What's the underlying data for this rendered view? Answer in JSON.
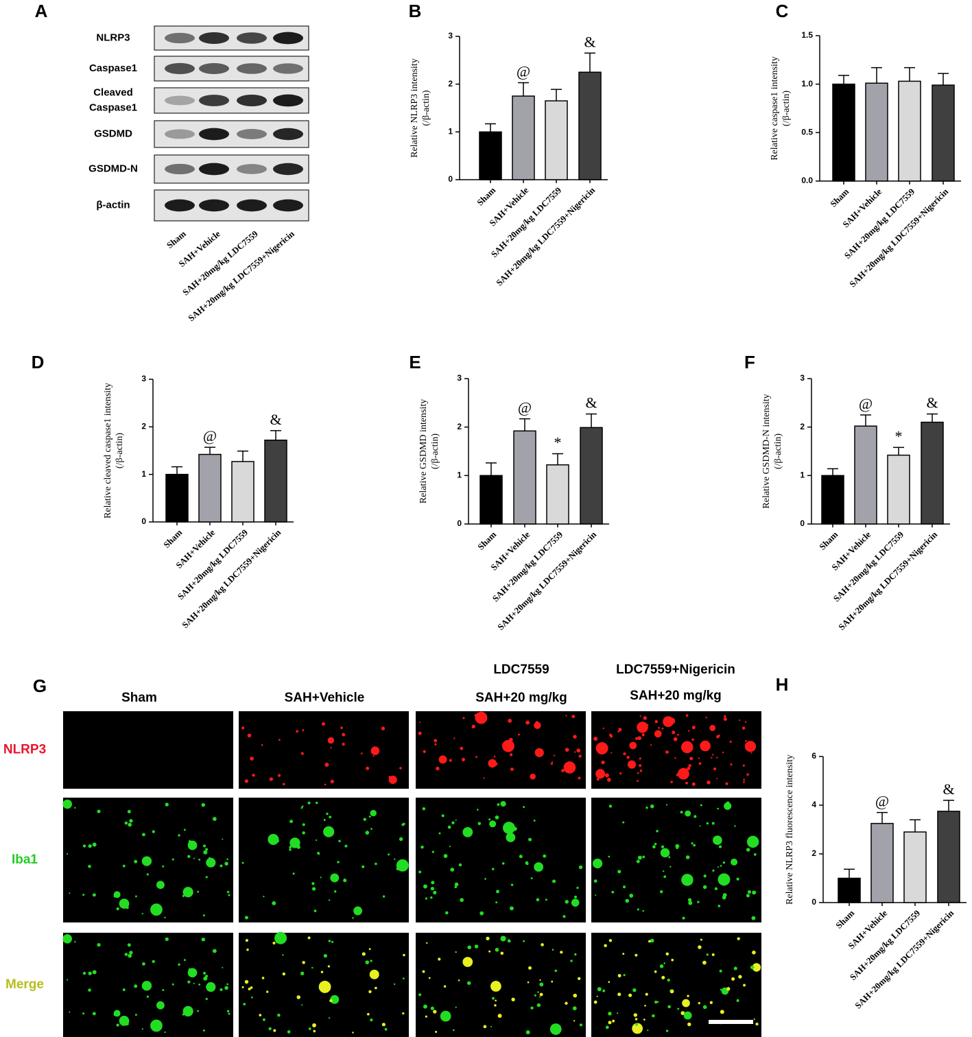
{
  "blot": {
    "label": "A",
    "rows": [
      [
        "NLRP3"
      ],
      [
        "Caspase1"
      ],
      [
        "Cleaved",
        "Caspase1"
      ],
      [
        "GSDMD"
      ],
      [
        "GSDMD-N"
      ],
      [
        "β-actin"
      ]
    ],
    "categories": [
      "Sham",
      "SAH+Vehicle",
      "SAH+20mg/kg LDC7559",
      "SAH+20mg/kg LDC7559+Nigericin"
    ]
  },
  "chart_data": [
    {
      "type": "bar",
      "label": "B",
      "ylabel": [
        "Relative NLRP3 intensity",
        "(/β-actin)"
      ],
      "categories": [
        "Sham",
        "SAH+Vehicle",
        "SAH+20mg/kg LDC7559",
        "SAH+20mg/kg LDC7559+Nigericin"
      ],
      "values": [
        1.0,
        1.75,
        1.65,
        2.25
      ],
      "errors": [
        0.17,
        0.28,
        0.24,
        0.4
      ],
      "annotations": [
        null,
        "@",
        null,
        "&"
      ],
      "colors": [
        "#000000",
        "#a2a2aa",
        "#d9d9d9",
        "#404040"
      ],
      "ylim": [
        0,
        3
      ],
      "yticks": [
        0,
        1,
        2,
        3
      ]
    },
    {
      "type": "bar",
      "label": "C",
      "ylabel": [
        "Relative caspase1 intensity",
        "(/β-actin)"
      ],
      "categories": [
        "Sham",
        "SAH+Vehicle",
        "SAH+20mg/kg LDC7559",
        "SAH+20mg/kg LDC7559+Nigericin"
      ],
      "values": [
        1.0,
        1.01,
        1.03,
        0.99
      ],
      "errors": [
        0.09,
        0.16,
        0.14,
        0.12
      ],
      "annotations": [
        null,
        null,
        null,
        null
      ],
      "colors": [
        "#000000",
        "#a2a2aa",
        "#d9d9d9",
        "#404040"
      ],
      "ylim": [
        0,
        1.5
      ],
      "yticks": [
        {
          "value": 0,
          "label": "0.0"
        },
        0.5,
        {
          "value": 1,
          "label": "1.0"
        },
        1.5
      ]
    },
    {
      "type": "bar",
      "label": "D",
      "ylabel": [
        "Relative cleaved caspase1 intensity",
        "(/β-actin)"
      ],
      "categories": [
        "Sham",
        "SAH+Vehicle",
        "SAH+20mg/kg LDC7559",
        "SAH+20mg/kg LDC7559+Nigericin"
      ],
      "values": [
        1.0,
        1.42,
        1.27,
        1.72
      ],
      "errors": [
        0.16,
        0.15,
        0.22,
        0.2
      ],
      "annotations": [
        null,
        "@",
        null,
        "&"
      ],
      "colors": [
        "#000000",
        "#a2a2aa",
        "#d9d9d9",
        "#404040"
      ],
      "ylim": [
        0,
        3
      ],
      "yticks": [
        0,
        1,
        2,
        3
      ]
    },
    {
      "type": "bar",
      "label": "E",
      "ylabel": [
        "Relative GSDMD intensity",
        "(/β-actin)"
      ],
      "categories": [
        "Sham",
        "SAH+Vehicle",
        "SAH+20mg/kg LDC7559",
        "SAH+20mg/kg LDC7559+Nigericin"
      ],
      "values": [
        1.0,
        1.92,
        1.22,
        1.99
      ],
      "errors": [
        0.26,
        0.25,
        0.23,
        0.28
      ],
      "annotations": [
        null,
        "@",
        "*",
        "&"
      ],
      "colors": [
        "#000000",
        "#a2a2aa",
        "#d9d9d9",
        "#404040"
      ],
      "ylim": [
        0,
        3
      ],
      "yticks": [
        0,
        1,
        2,
        3
      ]
    },
    {
      "type": "bar",
      "label": "F",
      "ylabel": [
        "Relative GSDMD-N intensity",
        "(/β-actin)"
      ],
      "categories": [
        "Sham",
        "SAH+Vehicle",
        "SAH+20mg/kg LDC7559",
        "SAH+20mg/kg LDC7559+Nigericin"
      ],
      "values": [
        1.0,
        2.02,
        1.42,
        2.1
      ],
      "errors": [
        0.14,
        0.23,
        0.16,
        0.17
      ],
      "annotations": [
        null,
        "@",
        "*",
        "&"
      ],
      "colors": [
        "#000000",
        "#a2a2aa",
        "#d9d9d9",
        "#404040"
      ],
      "ylim": [
        0,
        3
      ],
      "yticks": [
        0,
        1,
        2,
        3
      ]
    },
    {
      "type": "bar",
      "label": "H",
      "ylabel": [
        "Relative NLRP3 fluorescence intensity"
      ],
      "categories": [
        "Sham",
        "SAH+Vehicle",
        "SAH+20mg/kg LDC7559",
        "SAH+20mg/kg LDC7559+Nigericin"
      ],
      "values": [
        1.0,
        3.25,
        2.9,
        3.75
      ],
      "errors": [
        0.37,
        0.45,
        0.5,
        0.45
      ],
      "annotations": [
        null,
        "@",
        null,
        "&"
      ],
      "colors": [
        "#000000",
        "#a2a2aa",
        "#d9d9d9",
        "#404040"
      ],
      "ylim": [
        0,
        6
      ],
      "yticks": [
        0,
        2,
        4,
        6
      ]
    }
  ],
  "microscopy": {
    "label": "G",
    "columns": [
      [
        "Sham"
      ],
      [
        "SAH+Vehicle"
      ],
      [
        "LDC7559",
        "SAH+20 mg/kg"
      ],
      [
        "LDC7559+Nigericin",
        "SAH+20 mg/kg"
      ]
    ],
    "rows": [
      {
        "name": "NLRP3",
        "color": "#e8142c"
      },
      {
        "name": "Iba1",
        "color": "#22cc22"
      },
      {
        "name": "Merge",
        "color": "#b5bd1c"
      }
    ]
  }
}
